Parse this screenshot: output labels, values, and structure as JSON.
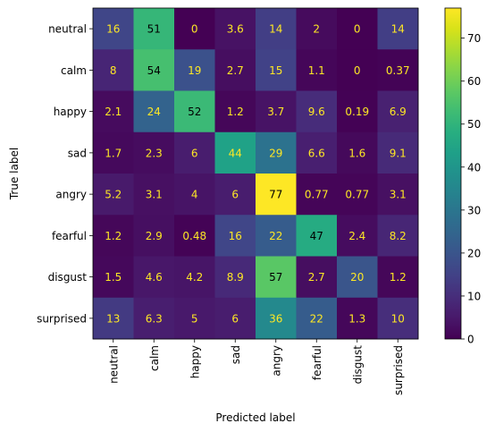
{
  "chart_data": {
    "type": "heatmap",
    "title": "",
    "xlabel": "Predicted label",
    "ylabel": "True label",
    "x_categories": [
      "neutral",
      "calm",
      "happy",
      "sad",
      "angry",
      "fearful",
      "disgust",
      "surprised"
    ],
    "y_categories": [
      "neutral",
      "calm",
      "happy",
      "sad",
      "angry",
      "fearful",
      "disgust",
      "surprised"
    ],
    "values": [
      [
        16,
        51,
        0,
        3.6,
        14,
        2,
        0,
        14
      ],
      [
        8,
        54,
        19,
        2.7,
        15,
        1.1,
        0,
        0.37
      ],
      [
        2.1,
        24,
        52,
        1.2,
        3.7,
        9.6,
        0.19,
        6.9
      ],
      [
        1.7,
        2.3,
        6,
        44,
        29,
        6.6,
        1.6,
        9.1
      ],
      [
        5.2,
        3.1,
        4,
        6,
        77,
        0.77,
        0.77,
        3.1
      ],
      [
        1.2,
        2.9,
        0.48,
        16,
        22,
        47,
        2.4,
        8.2
      ],
      [
        1.5,
        4.6,
        4.2,
        8.9,
        57,
        2.7,
        20,
        1.2
      ],
      [
        13,
        6.3,
        5,
        6,
        36,
        22,
        1.3,
        10
      ]
    ],
    "colormap": "viridis",
    "value_range": [
      0,
      77
    ],
    "colorbar_ticks": [
      0,
      10,
      20,
      30,
      40,
      50,
      60,
      70
    ],
    "text_color_light": "#fde725",
    "text_color_dark": "#000000"
  }
}
